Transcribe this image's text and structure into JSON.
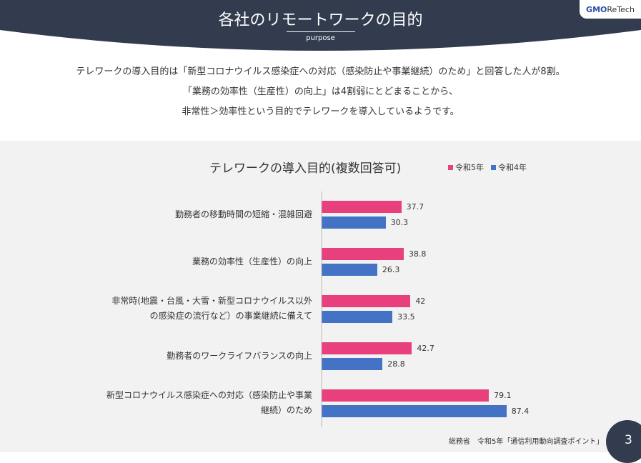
{
  "header": {
    "title": "各社のリモートワークの目的",
    "subtitle": "purpose",
    "logo_text": "GMO ReTech"
  },
  "description": [
    "テレワークの導入目的は「新型コロナウイルス感染症への対応（感染防止や事業継続）のため」と回答した人が8割。",
    "「業務の効率性（生産性）の向上」は4割弱にとどまることから、",
    "非常性＞効率性という目的でテレワークを導入しているようです。"
  ],
  "source": "総務省　令和5年「通信利用動向調査ポイント」",
  "page_number": "3",
  "colors": {
    "header": "#323c4e",
    "series1": "#e8407d",
    "series2": "#4472c4"
  },
  "chart_data": {
    "type": "bar",
    "orientation": "horizontal",
    "title": "テレワークの導入目的(複数回答可)",
    "categories": [
      "勤務者の移動時間の短縮・混雑回避",
      "業務の効率性（生産性）の向上",
      "非常時(地震・台風・大雪・新型コロナウイルス以外の感染症の流行など）の事業継続に備えて",
      "勤務者のワークライフバランスの向上",
      "新型コロナウイルス感染症への対応（感染防止や事業継続）のため"
    ],
    "series": [
      {
        "name": "令和5年",
        "values": [
          37.7,
          38.8,
          42,
          42.7,
          79.1
        ]
      },
      {
        "name": "令和4年",
        "values": [
          30.3,
          26.3,
          33.5,
          28.8,
          87.4
        ]
      }
    ],
    "legend": "top-right",
    "grid": false,
    "xlim": [
      0,
      100
    ]
  }
}
